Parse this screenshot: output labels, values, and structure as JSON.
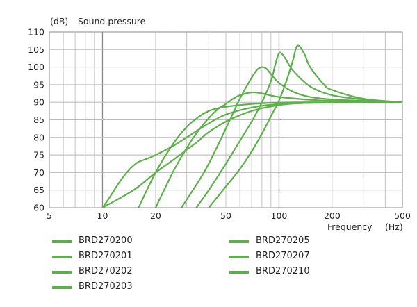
{
  "chart_data": {
    "type": "line",
    "title": "Sound pressure",
    "ylabel_unit": "(dB)",
    "ylabel": "Sound pressure",
    "xlabel": "Frequency (Hz)",
    "xlabel_text": "Frequency",
    "xlabel_unit": "(Hz)",
    "xscale": "log",
    "xlim": [
      5,
      500
    ],
    "ylim": [
      60,
      110
    ],
    "x_ticks": [
      5,
      10,
      20,
      50,
      100,
      200,
      500
    ],
    "x_tick_labels": [
      "5",
      "10",
      "20",
      "50",
      "100",
      "200",
      "500"
    ],
    "y_ticks": [
      60,
      65,
      70,
      75,
      80,
      85,
      90,
      95,
      100,
      105,
      110
    ],
    "y_tick_labels": [
      "60",
      "65",
      "70",
      "75",
      "80",
      "85",
      "90",
      "95",
      "100",
      "105",
      "110"
    ],
    "grid": true,
    "line_color": "#5cb04a",
    "series": [
      {
        "name": "BRD270200",
        "x": [
          10,
          11,
          12,
          13,
          14,
          15,
          16,
          18,
          20,
          25,
          30,
          40,
          50,
          70,
          100,
          150,
          200,
          300,
          500
        ],
        "y": [
          60,
          63,
          66,
          68.5,
          70.5,
          72,
          73,
          74,
          75,
          77.5,
          80,
          84,
          86.5,
          88.5,
          89.5,
          89.8,
          89.9,
          90,
          90
        ]
      },
      {
        "name": "BRD270201",
        "x": [
          10,
          15,
          20,
          25,
          30,
          35,
          40,
          50,
          60,
          70,
          80,
          90,
          100,
          120,
          150,
          200,
          300,
          500
        ],
        "y": [
          60,
          65,
          70,
          73.5,
          76.5,
          79,
          81.5,
          84.5,
          86.3,
          87.5,
          88.3,
          88.8,
          89.2,
          89.6,
          89.8,
          90,
          90,
          90
        ]
      },
      {
        "name": "BRD270202",
        "x": [
          16,
          20,
          25,
          30,
          35,
          40,
          45,
          50,
          55,
          60,
          70,
          80,
          100,
          150,
          200,
          300,
          500
        ],
        "y": [
          60,
          70,
          78,
          83,
          85.8,
          87.5,
          88.3,
          88.7,
          89,
          89.2,
          89.5,
          89.7,
          89.9,
          90,
          90,
          90,
          90
        ]
      },
      {
        "name": "BRD270203",
        "x": [
          20,
          25,
          30,
          35,
          40,
          45,
          50,
          55,
          60,
          70,
          80,
          100,
          150,
          200,
          300,
          500
        ],
        "y": [
          60,
          70,
          77,
          82,
          85.5,
          88,
          89.5,
          91,
          92,
          92.8,
          92.5,
          91.5,
          90.7,
          90.4,
          90.2,
          90
        ]
      },
      {
        "name": "BRD270205",
        "x": [
          28,
          35,
          40,
          50,
          60,
          70,
          75,
          80,
          85,
          90,
          100,
          120,
          150,
          200,
          300,
          500
        ],
        "y": [
          60,
          67.5,
          72.5,
          82.5,
          91,
          97,
          99.2,
          100,
          99.5,
          98,
          95.5,
          93,
          91.5,
          90.8,
          90.4,
          90
        ]
      },
      {
        "name": "BRD270207",
        "x": [
          34,
          40,
          50,
          60,
          70,
          80,
          90,
          95,
          100,
          105,
          110,
          120,
          150,
          200,
          300,
          500
        ],
        "y": [
          60,
          65,
          72.5,
          79,
          84.5,
          90,
          96,
          100.5,
          104,
          103.5,
          102,
          99,
          94.5,
          92,
          90.8,
          90
        ]
      },
      {
        "name": "BRD270210",
        "x": [
          40,
          50,
          60,
          70,
          80,
          90,
          100,
          110,
          120,
          125,
          130,
          140,
          150,
          180,
          200,
          300,
          500
        ],
        "y": [
          60,
          66,
          71,
          76,
          81,
          86,
          90.5,
          96,
          102,
          105.5,
          106,
          103.5,
          100,
          95,
          93.5,
          91,
          90
        ]
      }
    ]
  }
}
